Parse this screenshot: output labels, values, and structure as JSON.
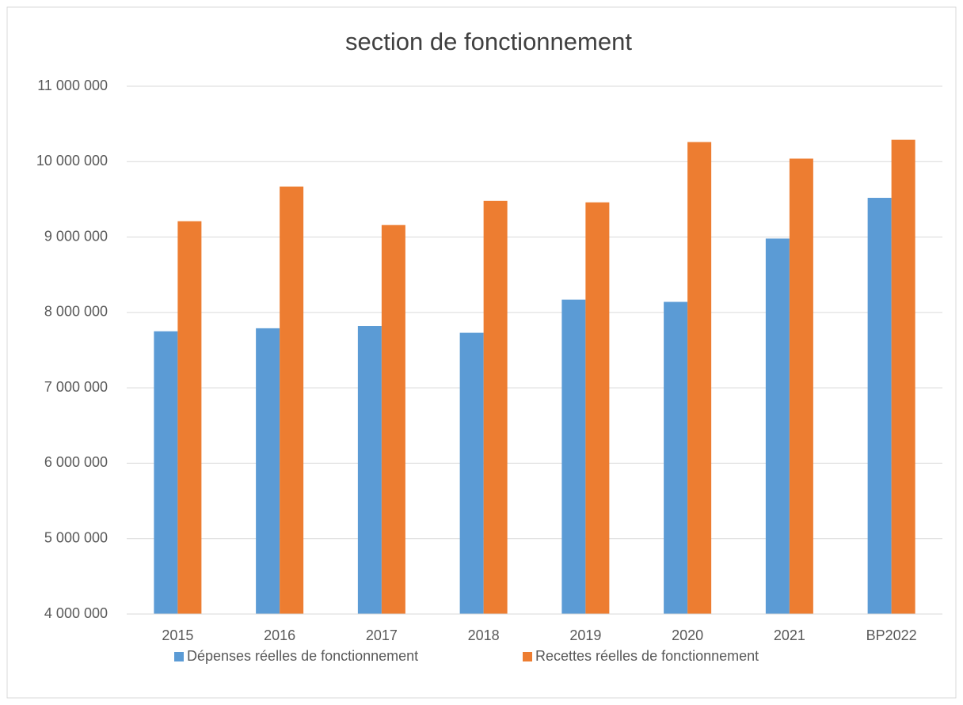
{
  "chart_data": {
    "type": "bar",
    "title": "section de fonctionnement",
    "categories": [
      "2015",
      "2016",
      "2017",
      "2018",
      "2019",
      "2020",
      "2021",
      "BP2022"
    ],
    "series": [
      {
        "name": "Dépenses réelles de fonctionnement",
        "color": "#5b9bd5",
        "values": [
          7750000,
          7790000,
          7820000,
          7730000,
          8170000,
          8140000,
          8980000,
          9520000
        ]
      },
      {
        "name": "Recettes réelles de fonctionnement",
        "color": "#ed7d31",
        "values": [
          9210000,
          9670000,
          9160000,
          9480000,
          9460000,
          10260000,
          10040000,
          10290000
        ]
      }
    ],
    "ylim": [
      4000000,
      11000000
    ],
    "yticks": [
      {
        "value": 4000000,
        "label": "4 000 000"
      },
      {
        "value": 5000000,
        "label": "5 000 000"
      },
      {
        "value": 6000000,
        "label": "6 000 000"
      },
      {
        "value": 7000000,
        "label": "7 000 000"
      },
      {
        "value": 8000000,
        "label": "8 000 000"
      },
      {
        "value": 9000000,
        "label": "9 000 000"
      },
      {
        "value": 10000000,
        "label": "10 000 000"
      },
      {
        "value": 11000000,
        "label": "11 000 000"
      }
    ],
    "grid": true,
    "legend": "bottom"
  }
}
